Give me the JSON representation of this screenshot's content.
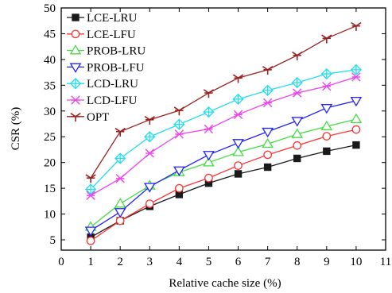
{
  "chart_data": {
    "type": "line",
    "xlabel": "Relative cache size (%)",
    "ylabel": "CSR (%)",
    "xlim": [
      0,
      11
    ],
    "ylim": [
      3,
      50
    ],
    "xticks": [
      0,
      1,
      2,
      3,
      4,
      5,
      6,
      7,
      8,
      9,
      10,
      11
    ],
    "yticks": [
      5,
      10,
      15,
      20,
      25,
      30,
      35,
      40,
      45,
      50
    ],
    "grid": false,
    "legend_position": "top-left",
    "x": [
      1,
      2,
      3,
      4,
      5,
      6,
      7,
      8,
      9,
      10
    ],
    "series": [
      {
        "name": "LCE-LRU",
        "color": "#1a1a1a",
        "marker": "square-filled",
        "values": [
          5.5,
          8.7,
          11.5,
          13.8,
          16.0,
          17.8,
          19.1,
          20.8,
          22.2,
          23.4
        ]
      },
      {
        "name": "LCE-LFU",
        "color": "#ff3333",
        "marker": "circle-open",
        "values": [
          4.8,
          8.7,
          12.0,
          15.0,
          17.0,
          19.4,
          21.5,
          23.3,
          25.1,
          26.4
        ]
      },
      {
        "name": "PROB-LRU",
        "color": "#44dd44",
        "marker": "triangle-up-open",
        "values": [
          7.5,
          12.0,
          15.5,
          18.1,
          20.0,
          22.0,
          23.6,
          25.5,
          27.0,
          28.4
        ]
      },
      {
        "name": "PROB-LFU",
        "color": "#2222ff",
        "marker": "triangle-down-open",
        "values": [
          6.8,
          10.4,
          15.3,
          18.5,
          21.5,
          23.8,
          26.0,
          28.1,
          30.6,
          32.0
        ]
      },
      {
        "name": "LCD-LRU",
        "color": "#22ddee",
        "marker": "diamond-cross",
        "values": [
          14.8,
          20.8,
          25.0,
          27.4,
          29.8,
          32.3,
          34.0,
          35.5,
          37.2,
          38.0
        ]
      },
      {
        "name": "LCD-LFU",
        "color": "#ee44ee",
        "marker": "x-bar",
        "values": [
          13.6,
          16.9,
          21.8,
          25.5,
          26.5,
          29.3,
          31.6,
          33.5,
          34.8,
          36.6
        ]
      },
      {
        "name": "OPT",
        "color": "#992222",
        "marker": "arrow-star",
        "values": [
          17.0,
          26.0,
          28.3,
          30.1,
          33.5,
          36.4,
          38.0,
          40.8,
          44.1,
          46.5
        ]
      }
    ]
  }
}
